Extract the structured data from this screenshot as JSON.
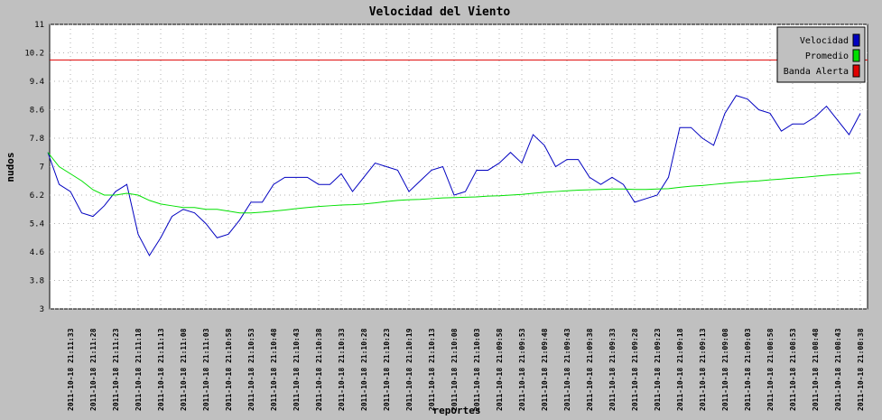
{
  "chart_data": {
    "type": "line",
    "title": "Velocidad del Viento",
    "x_label": "reportes",
    "y_label": "nudos",
    "categories": [
      null,
      null,
      "2011-10-18 21:11:33",
      null,
      "2011-10-18 21:11:28",
      null,
      "2011-10-18 21:11:23",
      null,
      "2011-10-18 21:11:18",
      null,
      "2011-10-18 21:11:13",
      null,
      "2011-10-18 21:11:08",
      null,
      "2011-10-18 21:11:03",
      null,
      "2011-10-18 21:10:58",
      null,
      "2011-10-18 21:10:53",
      null,
      "2011-10-18 21:10:48",
      null,
      "2011-10-18 21:10:43",
      null,
      "2011-10-18 21:10:38",
      null,
      "2011-10-18 21:10:33",
      null,
      "2011-10-18 21:10:28",
      null,
      "2011-10-18 21:10:23",
      null,
      "2011-10-18 21:10:19",
      null,
      "2011-10-18 21:10:13",
      null,
      "2011-10-18 21:10:08",
      null,
      "2011-10-18 21:10:03",
      null,
      "2011-10-18 21:09:58",
      null,
      "2011-10-18 21:09:53",
      null,
      "2011-10-18 21:09:48",
      null,
      "2011-10-18 21:09:43",
      null,
      "2011-10-18 21:09:38",
      null,
      "2011-10-18 21:09:33",
      null,
      "2011-10-18 21:09:28",
      null,
      "2011-10-18 21:09:23",
      null,
      "2011-10-18 21:09:18",
      null,
      "2011-10-18 21:09:13",
      null,
      "2011-10-18 21:09:08",
      null,
      "2011-10-18 21:09:03",
      null,
      "2011-10-18 21:08:58",
      null,
      "2011-10-18 21:08:53",
      null,
      "2011-10-18 21:08:48",
      null,
      "2011-10-18 21:08:43",
      null,
      "2011-10-18 21:08:38"
    ],
    "series": [
      {
        "name": "Velocidad",
        "color": "#0000c0",
        "values": [
          7.4,
          6.5,
          6.3,
          5.7,
          5.6,
          5.9,
          6.3,
          6.5,
          5.1,
          4.5,
          5.0,
          5.6,
          5.8,
          5.7,
          5.4,
          5.0,
          5.1,
          5.5,
          6.0,
          6.0,
          6.5,
          6.7,
          6.7,
          6.7,
          6.5,
          6.5,
          6.8,
          6.3,
          6.7,
          7.1,
          7.0,
          6.9,
          6.3,
          6.6,
          6.9,
          7.0,
          6.2,
          6.3,
          6.9,
          6.9,
          7.1,
          7.4,
          7.1,
          7.9,
          7.6,
          7.0,
          7.2,
          7.2,
          6.7,
          6.5,
          6.7,
          6.5,
          6.0,
          6.1,
          6.2,
          6.7,
          8.1,
          8.1,
          7.8,
          7.6,
          8.5,
          9.0,
          8.9,
          8.6,
          8.5,
          8.0,
          8.2,
          8.2,
          8.4,
          8.7,
          8.3,
          7.9,
          8.5
        ]
      },
      {
        "name": "Promedio",
        "color": "#00e000",
        "values": [
          7.4,
          7.0,
          6.8,
          6.6,
          6.35,
          6.2,
          6.2,
          6.25,
          6.2,
          6.05,
          5.95,
          5.9,
          5.85,
          5.85,
          5.8,
          5.8,
          5.75,
          5.7,
          5.7,
          5.72,
          5.75,
          5.78,
          5.82,
          5.85,
          5.88,
          5.9,
          5.92,
          5.93,
          5.95,
          5.98,
          6.02,
          6.05,
          6.07,
          6.08,
          6.1,
          6.12,
          6.13,
          6.14,
          6.15,
          6.17,
          6.18,
          6.2,
          6.22,
          6.25,
          6.28,
          6.3,
          6.32,
          6.34,
          6.35,
          6.36,
          6.37,
          6.37,
          6.36,
          6.36,
          6.37,
          6.38,
          6.42,
          6.45,
          6.47,
          6.5,
          6.53,
          6.56,
          6.58,
          6.6,
          6.63,
          6.65,
          6.68,
          6.7,
          6.73,
          6.76,
          6.78,
          6.8,
          6.83
        ]
      },
      {
        "name": "Banda Alerta",
        "color": "#e00000",
        "value": 10
      }
    ],
    "ylim": [
      3,
      11
    ],
    "yticks": [
      3,
      3.8,
      4.6,
      5.4,
      6.2,
      7,
      7.8,
      8.6,
      9.4,
      10.2,
      11
    ],
    "grid": true,
    "legend": "top-right"
  }
}
